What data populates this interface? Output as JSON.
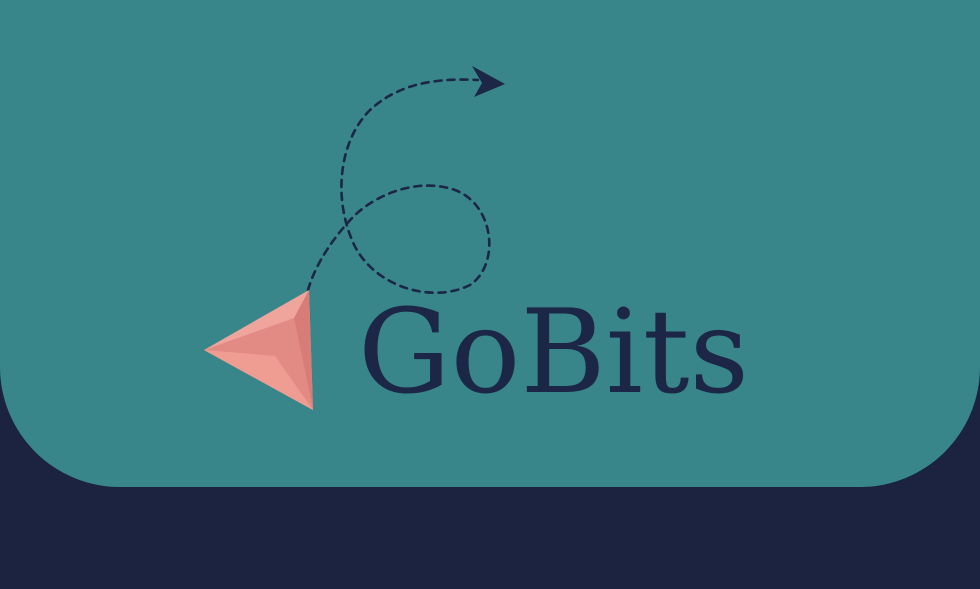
{
  "brand": {
    "name": "GoBits",
    "logo_icon": "paper-plane-icon",
    "flight_path_icon": "dashed-flight-path-icon"
  },
  "colors": {
    "background": "#1b2340",
    "panel": "#38868a",
    "text": "#1c2646",
    "plane_light": "#f0a59c",
    "plane_dark": "#d9807a",
    "path": "#1c2646"
  }
}
